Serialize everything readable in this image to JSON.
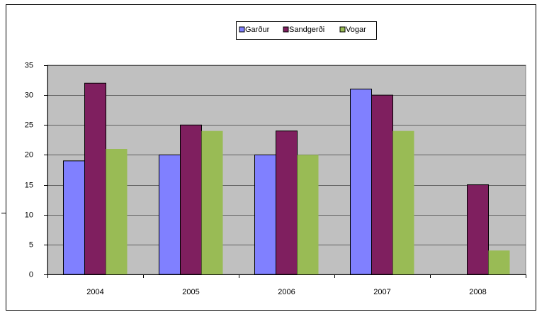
{
  "chart_data": {
    "type": "bar",
    "categories": [
      "2004",
      "2005",
      "2006",
      "2007",
      "2008"
    ],
    "series": [
      {
        "name": "Garður",
        "color": "#8080ff",
        "values": [
          19,
          20,
          20,
          31,
          null
        ]
      },
      {
        "name": "Sandgerði",
        "color": "#7f1f5f",
        "values": [
          32,
          25,
          24,
          30,
          15
        ]
      },
      {
        "name": "Vogar",
        "color": "#99bb55",
        "values": [
          21,
          24,
          20,
          24,
          4
        ]
      }
    ],
    "ylim": [
      0,
      35
    ],
    "yticks": [
      0,
      5,
      10,
      15,
      20,
      25,
      30,
      35
    ],
    "grid": true,
    "legend": "top"
  }
}
